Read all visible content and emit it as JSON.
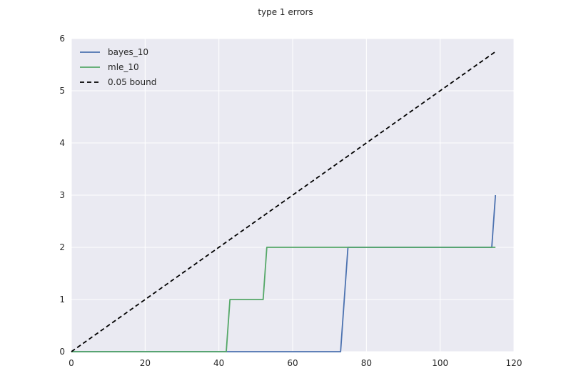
{
  "chart_data": {
    "type": "line",
    "title": "type 1 errors",
    "xlabel": "",
    "ylabel": "",
    "xlim": [
      0,
      120
    ],
    "ylim": [
      0,
      6
    ],
    "xticks": [
      "0",
      "20",
      "40",
      "60",
      "80",
      "100",
      "120"
    ],
    "yticks": [
      "0",
      "1",
      "2",
      "3",
      "4",
      "5",
      "6"
    ],
    "grid": true,
    "legend_position": "top-left",
    "series": [
      {
        "name": "bayes_10",
        "color": "#4c72b0",
        "style": "solid",
        "points": [
          [
            0,
            0
          ],
          [
            73,
            0
          ],
          [
            75,
            2
          ],
          [
            114,
            2
          ],
          [
            115,
            3
          ]
        ]
      },
      {
        "name": "mle_10",
        "color": "#55a868",
        "style": "solid",
        "points": [
          [
            0,
            0
          ],
          [
            42,
            0
          ],
          [
            43,
            1
          ],
          [
            52,
            1
          ],
          [
            53,
            2
          ],
          [
            115,
            2
          ]
        ]
      },
      {
        "name": "0.05 bound",
        "color": "#000000",
        "style": "dashed",
        "points": [
          [
            0,
            0
          ],
          [
            115,
            5.75
          ]
        ]
      }
    ]
  }
}
